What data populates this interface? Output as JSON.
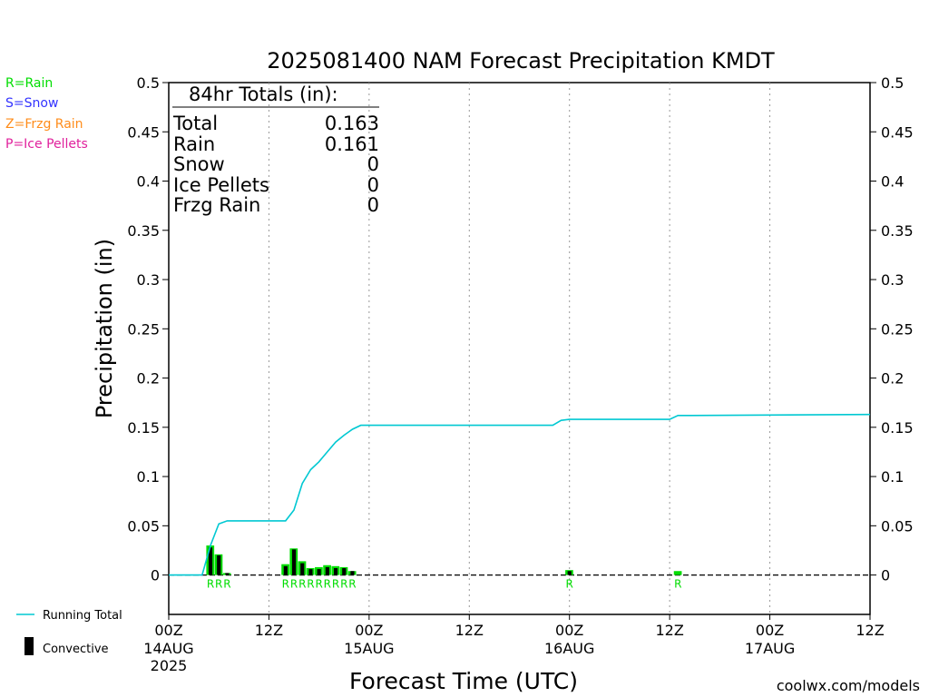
{
  "chart_data": {
    "type": "bar",
    "title": "2025081400 NAM Forecast Precipitation KMDT",
    "ylabel": "Precipitation (in)",
    "xlabel": "Forecast Time (UTC)",
    "ylim": [
      -0.04,
      0.5
    ],
    "xlim_hours": [
      0,
      84
    ],
    "yticks": [
      "0.5",
      "0.45",
      "0.4",
      "0.35",
      "0.3",
      "0.25",
      "0.2",
      "0.15",
      "0.1",
      "0.05",
      "0"
    ],
    "xtick_hours": [
      0,
      12,
      24,
      36,
      48,
      60,
      72,
      84
    ],
    "xticks": [
      {
        "top": "00Z",
        "date": "14AUG",
        "year": "2025"
      },
      {
        "top": "12Z",
        "date": "",
        "year": ""
      },
      {
        "top": "00Z",
        "date": "15AUG",
        "year": ""
      },
      {
        "top": "12Z",
        "date": "",
        "year": ""
      },
      {
        "top": "00Z",
        "date": "16AUG",
        "year": ""
      },
      {
        "top": "12Z",
        "date": "",
        "year": ""
      },
      {
        "top": "00Z",
        "date": "17AUG",
        "year": ""
      },
      {
        "top": "12Z",
        "date": "",
        "year": ""
      }
    ],
    "grid": "vertical dotted at 12h intervals",
    "bars": {
      "hours": [
        5,
        6,
        7,
        14,
        15,
        16,
        17,
        18,
        19,
        20,
        21,
        22,
        48,
        61
      ],
      "total": [
        0.03,
        0.021,
        0.002,
        0.011,
        0.027,
        0.014,
        0.007,
        0.008,
        0.01,
        0.009,
        0.008,
        0.004,
        0.005,
        0.004
      ],
      "convective": [
        0.028,
        0.02,
        0.002,
        0.009,
        0.026,
        0.012,
        0.006,
        0.006,
        0.008,
        0.007,
        0.007,
        0.004,
        0.004,
        0.0
      ],
      "total_color": "#00dd00",
      "convective_color": "#000000"
    },
    "ptype_markers": {
      "hours": [
        5,
        6,
        7,
        14,
        15,
        16,
        17,
        18,
        19,
        20,
        21,
        22,
        48,
        61
      ],
      "label": "R",
      "color": "#00dd00"
    },
    "running_total": {
      "name": "Running Total",
      "color": "#00c8d2",
      "x": [
        0,
        4,
        5,
        6,
        7,
        8,
        14,
        15,
        16,
        17,
        18,
        19,
        20,
        21,
        22,
        23,
        24,
        46,
        47,
        48,
        49,
        60,
        61,
        62,
        84
      ],
      "y": [
        0,
        0,
        0.03,
        0.052,
        0.055,
        0.055,
        0.055,
        0.066,
        0.093,
        0.107,
        0.115,
        0.125,
        0.135,
        0.142,
        0.148,
        0.152,
        0.152,
        0.152,
        0.157,
        0.158,
        0.158,
        0.158,
        0.162,
        0.162,
        0.163
      ]
    },
    "zero_line": "dashed"
  },
  "totals_box": {
    "heading": "84hr Totals (in):",
    "rows": [
      {
        "label": "Total",
        "value": "0.163"
      },
      {
        "label": "Rain",
        "value": "0.161"
      },
      {
        "label": "Snow",
        "value": "0"
      },
      {
        "label": "Ice Pellets",
        "value": "0"
      },
      {
        "label": "Frzg Rain",
        "value": "0"
      }
    ]
  },
  "ptype_legend": [
    {
      "text": "R=Rain",
      "color": "#00dd00"
    },
    {
      "text": "S=Snow",
      "color": "#3333ff"
    },
    {
      "text": "Z=Frzg Rain",
      "color": "#ff8c1a"
    },
    {
      "text": "P=Ice Pellets",
      "color": "#e0209c"
    }
  ],
  "line_legend": {
    "running_total": "Running Total",
    "convective": "Convective"
  },
  "credit": {
    "text": "coolwx.com/models",
    "color": "#d4143a"
  }
}
